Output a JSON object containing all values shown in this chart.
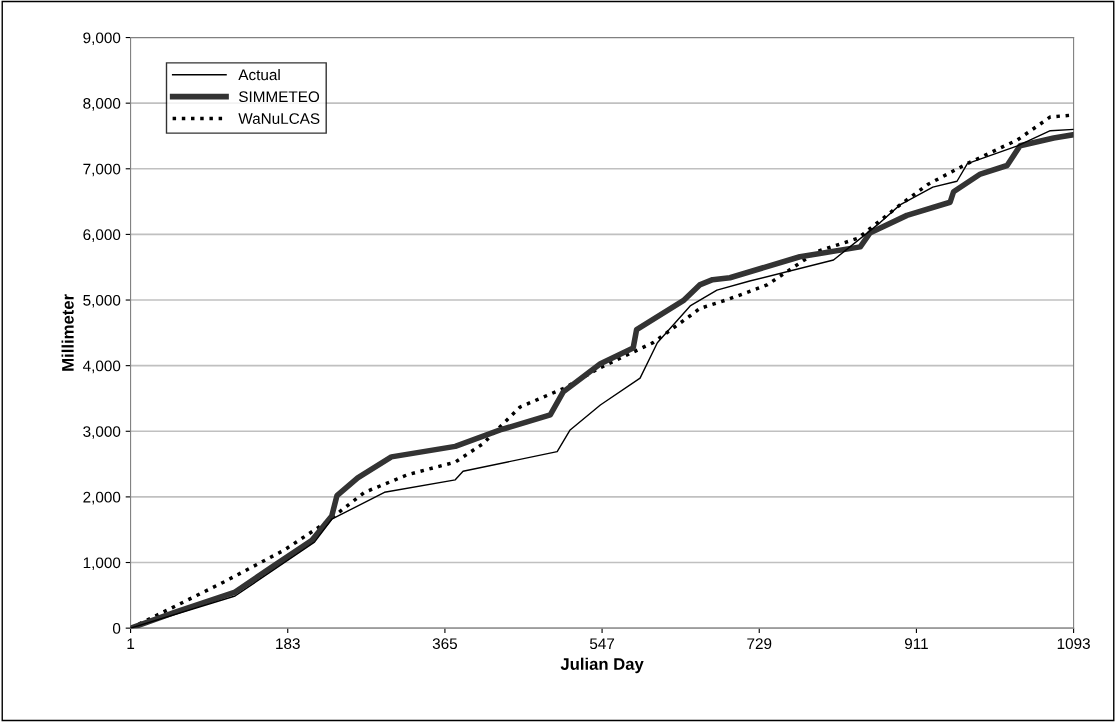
{
  "chart_data": {
    "type": "line",
    "xlabel": "Julian Day",
    "ylabel": "Millimeter",
    "xlim": [
      1,
      1093
    ],
    "xticks": [
      1,
      183,
      365,
      547,
      729,
      911,
      1093
    ],
    "ylim": [
      0,
      9000
    ],
    "yticks": [
      {
        "value": 0,
        "label": "0"
      },
      {
        "value": 1000,
        "label": "1,000"
      },
      {
        "value": 2000,
        "label": "2,000"
      },
      {
        "value": 3000,
        "label": "3,000"
      },
      {
        "value": 4000,
        "label": "4,000"
      },
      {
        "value": 5000,
        "label": "5,000"
      },
      {
        "value": 6000,
        "label": "6,000"
      },
      {
        "value": 7000,
        "label": "7,000"
      },
      {
        "value": 8000,
        "label": "8,000"
      },
      {
        "value": 9000,
        "label": "9,000"
      }
    ],
    "grid": "y",
    "legend": "top left",
    "series": [
      {
        "name": "Actual",
        "color": "#000000",
        "line_style": "solid",
        "x": [
          1,
          122,
          214,
          234,
          295,
          377,
          386,
          495,
          510,
          545,
          591,
          611,
          649,
          680,
          718,
          815,
          869,
          892,
          930,
          958,
          970,
          1028,
          1066,
          1093
        ],
        "values": [
          0,
          490,
          1310,
          1660,
          2070,
          2260,
          2390,
          2690,
          3020,
          3400,
          3810,
          4350,
          4910,
          5150,
          5290,
          5610,
          6180,
          6450,
          6720,
          6810,
          7080,
          7350,
          7580,
          7600
        ]
      },
      {
        "name": "SIMMETEO",
        "color": "#333333",
        "line_style": "solid",
        "x": [
          1,
          52,
          122,
          168,
          211,
          234,
          240,
          264,
          303,
          377,
          429,
          487,
          502,
          545,
          583,
          587,
          641,
          660,
          675,
          695,
          776,
          846,
          857,
          900,
          950,
          954,
          985,
          1016,
          1031,
          1070,
          1093
        ],
        "values": [
          0,
          240,
          550,
          960,
          1340,
          1710,
          2020,
          2290,
          2610,
          2770,
          3020,
          3250,
          3600,
          4030,
          4270,
          4550,
          4990,
          5230,
          5310,
          5340,
          5660,
          5810,
          6020,
          6290,
          6490,
          6650,
          6920,
          7050,
          7350,
          7470,
          7520
        ]
      },
      {
        "name": "WaNuLCAS",
        "color": "#000000",
        "line_style": "dotted",
        "x": [
          1,
          52,
          110,
          179,
          226,
          272,
          322,
          377,
          409,
          452,
          502,
          545,
          606,
          649,
          660,
          695,
          738,
          796,
          843,
          892,
          924,
          970,
          1028,
          1066,
          1093
        ],
        "values": [
          0,
          330,
          710,
          1190,
          1600,
          2070,
          2340,
          2530,
          2810,
          3370,
          3650,
          3970,
          4350,
          4760,
          4870,
          5020,
          5230,
          5740,
          5940,
          6450,
          6760,
          7080,
          7440,
          7790,
          7820
        ]
      }
    ]
  }
}
